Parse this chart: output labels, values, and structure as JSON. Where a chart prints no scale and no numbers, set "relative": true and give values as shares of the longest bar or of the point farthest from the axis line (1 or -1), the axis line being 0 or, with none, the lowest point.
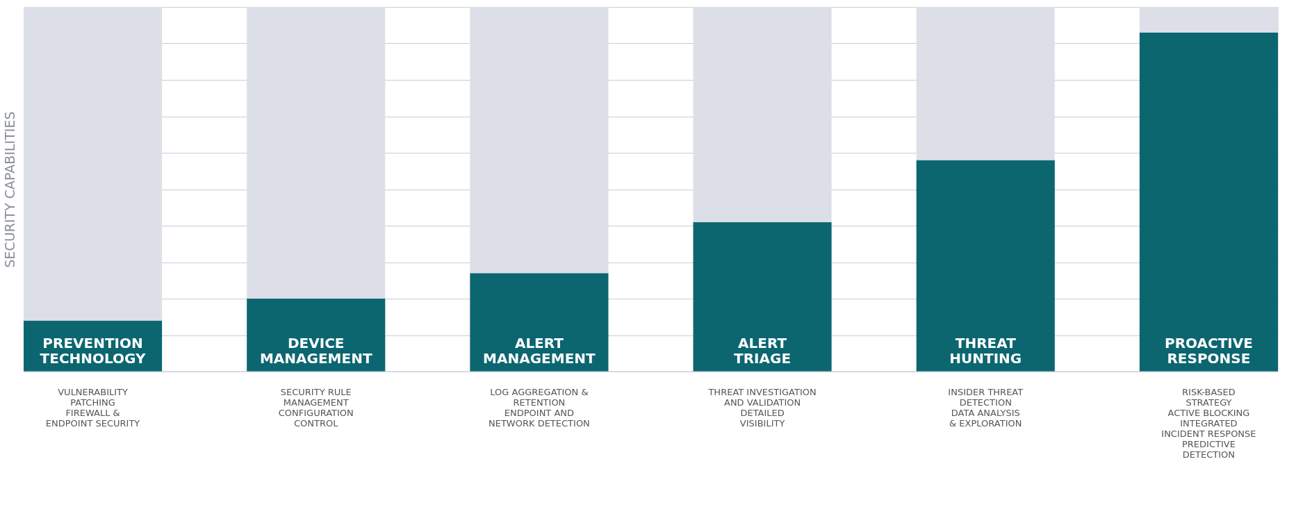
{
  "chart_data": {
    "type": "bar",
    "relative": true,
    "stacked": true,
    "grid": "y",
    "tick_labels": false,
    "ylabel": "SECURITY CAPABILITIES",
    "categories": [
      "PREVENTION\nTECHNOLOGY",
      "DEVICE\nMANAGEMENT",
      "ALERT\nMANAGEMENT",
      "ALERT\nTRIAGE",
      "THREAT\nHUNTING",
      "PROACTIVE\nRESPONSE"
    ],
    "series": [
      {
        "color": "#0b6670",
        "values": [
          0.14,
          0.2,
          0.27,
          0.41,
          0.58,
          0.93
        ]
      },
      {
        "color": "#dcdfe7",
        "values": [
          0.86,
          0.8,
          0.73,
          0.59,
          0.42,
          0.07
        ]
      }
    ],
    "annotations": [
      "VULNERABILITY\nPATCHING\n\nFIREWALL &\nENDPOINT SECURITY",
      "SECURITY RULE\nMANAGEMENT\n\nCONFIGURATION\nCONTROL",
      "LOG AGGREGATION &\nRETENTION\n\nENDPOINT AND\nNETWORK DETECTION",
      "THREAT INVESTIGATION\nAND VALIDATION\n\nDETAILED\nVISIBILITY",
      "INSIDER THREAT\nDETECTION\n\nDATA ANALYSIS\n& EXPLORATION",
      "RISK-BASED\nSTRATEGY\n\nACTIVE BLOCKING\n\nINTEGRATED\nINCIDENT RESPONSE\n\nPREDICTIVE\nDETECTION"
    ]
  }
}
